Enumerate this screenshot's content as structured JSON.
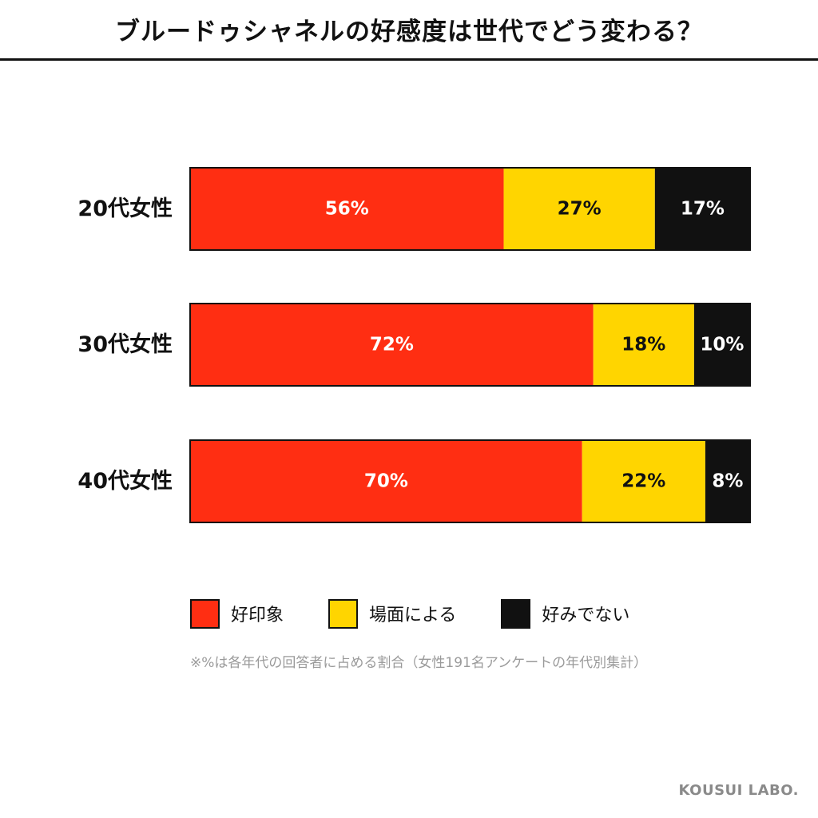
{
  "header": {
    "title": "ブルードゥシャネルの好感度は世代でどう変わる？"
  },
  "colors": {
    "favorable": "#FF2E12",
    "depends": "#FFD500",
    "unfavorable": "#111111",
    "border": "#111111"
  },
  "chart_data": {
    "type": "bar",
    "orientation": "horizontal",
    "stacked": true,
    "percent": true,
    "title": "ブルードゥシャネルの好感度は世代でどう変わる？",
    "categories": [
      "20代女性",
      "30代女性",
      "40代女性"
    ],
    "series": [
      {
        "name": "好印象",
        "values": [
          56,
          72,
          70
        ]
      },
      {
        "name": "場面による",
        "values": [
          27,
          18,
          22
        ]
      },
      {
        "name": "好みでない",
        "values": [
          17,
          10,
          8
        ]
      }
    ],
    "value_labels": [
      [
        "56%",
        "27%",
        "17%"
      ],
      [
        "72%",
        "18%",
        "10%"
      ],
      [
        "70%",
        "22%",
        "8%"
      ]
    ],
    "xlim": [
      0,
      100
    ],
    "grid": false,
    "legend_position": "bottom"
  },
  "legend": [
    {
      "label": "好印象"
    },
    {
      "label": "場面による"
    },
    {
      "label": "好みでない"
    }
  ],
  "note": "※%は各年代の回答者に占める割合（女性191名アンケートの年代別集計）",
  "brand": "KOUSUI LABO."
}
